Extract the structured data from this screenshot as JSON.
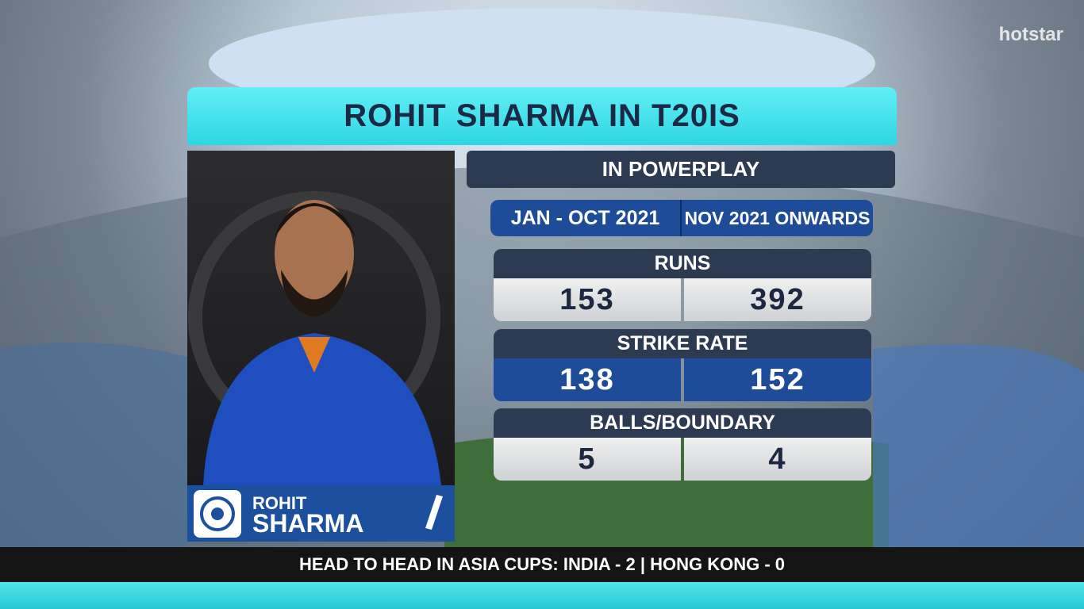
{
  "logo": "hotstar",
  "title": "ROHIT SHARMA IN T20IS",
  "player": {
    "first_name": "ROHIT",
    "last_name": "SHARMA"
  },
  "panel": {
    "heading": "IN POWERPLAY",
    "columns": [
      "JAN - OCT 2021",
      "NOV 2021 ONWARDS"
    ],
    "rows": [
      {
        "label": "RUNS",
        "values": [
          153,
          392
        ]
      },
      {
        "label": "STRIKE RATE",
        "values": [
          138,
          152
        ]
      },
      {
        "label": "BALLS/BOUNDARY",
        "values": [
          5,
          4
        ]
      }
    ]
  },
  "ticker": "HEAD TO HEAD IN ASIA CUPS: INDIA - 2 | HONG KONG - 0"
}
